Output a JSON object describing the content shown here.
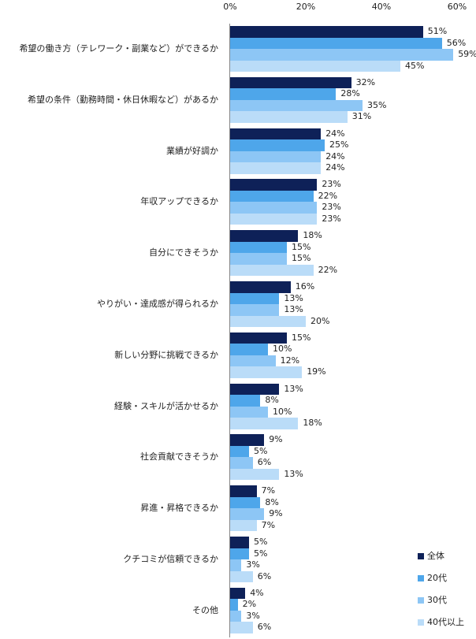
{
  "chart_data": {
    "type": "bar",
    "orientation": "horizontal",
    "title": "",
    "xlabel": "",
    "ylabel": "",
    "xlim": [
      0,
      60
    ],
    "x_ticks": [
      "0%",
      "20%",
      "40%",
      "60%"
    ],
    "grid": false,
    "legend_position": "bottom-right",
    "categories": [
      "希望の働き方（テレワーク・副業など）ができるか",
      "希望の条件（勤務時間・休日休暇など）があるか",
      "業績が好調か",
      "年収アップできるか",
      "自分にできそうか",
      "やりがい・達成感が得られるか",
      "新しい分野に挑戦できるか",
      "経験・スキルが活かせるか",
      "社会貢献できそうか",
      "昇進・昇格できるか",
      "クチコミが信頼できるか",
      "その他"
    ],
    "series": [
      {
        "name": "全体",
        "color": "#0e2158",
        "values": [
          51,
          32,
          24,
          23,
          18,
          16,
          15,
          13,
          9,
          7,
          5,
          4
        ]
      },
      {
        "name": "20代",
        "color": "#4ea6ea",
        "values": [
          56,
          28,
          25,
          22,
          15,
          13,
          10,
          8,
          5,
          8,
          5,
          2
        ]
      },
      {
        "name": "30代",
        "color": "#8dc6f5",
        "values": [
          59,
          35,
          24,
          23,
          15,
          13,
          12,
          10,
          6,
          9,
          3,
          3
        ]
      },
      {
        "name": "40代以上",
        "color": "#badcf8",
        "values": [
          45,
          31,
          24,
          23,
          22,
          20,
          19,
          18,
          13,
          7,
          6,
          6
        ]
      }
    ],
    "value_suffix": "%"
  }
}
